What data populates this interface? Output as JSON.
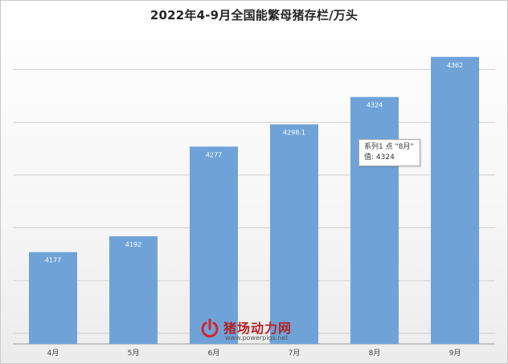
{
  "chart_data": {
    "type": "bar",
    "title": "2022年4-9月全国能繁母猪存栏/万头",
    "categories": [
      "4月",
      "5月",
      "6月",
      "7月",
      "8月",
      "9月"
    ],
    "series": [
      {
        "values": [
          4177,
          4192,
          4277,
          4298.1,
          4324,
          4362
        ]
      }
    ],
    "data_labels": [
      "4177",
      "4192",
      "4277",
      "4298.1",
      "4324",
      "4362"
    ],
    "bar_color": "#6fa3d8",
    "grid": true,
    "legend": "none"
  },
  "tooltip": {
    "line1": "系列1 点 \"8月\"",
    "line2": "值: 4324"
  },
  "watermark": {
    "brand": "猪场动力网",
    "url": "www.powerpigs.net"
  }
}
